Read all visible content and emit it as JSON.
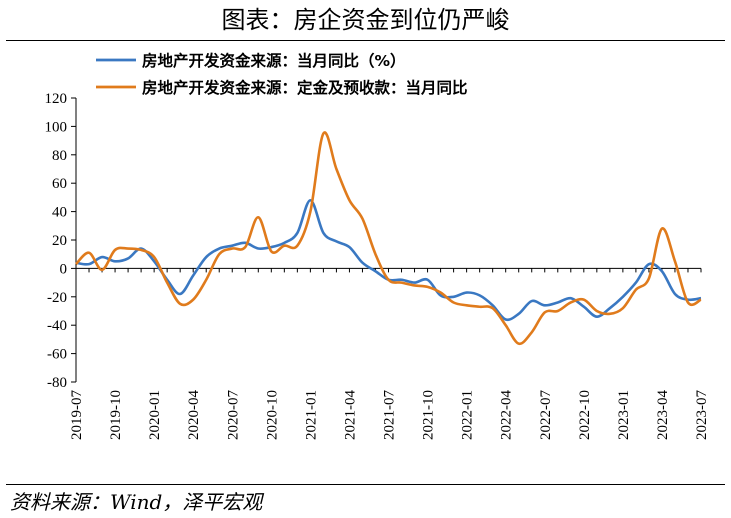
{
  "header": {
    "title": "图表：房企资金到位仍严峻"
  },
  "footer": {
    "source": "资料来源：Wind，泽平宏观"
  },
  "chart_data": {
    "type": "line",
    "title": "图表：房企资金到位仍严峻",
    "xlabel": "",
    "ylabel": "",
    "ylim": [
      -80,
      120
    ],
    "y_ticks": [
      120,
      100,
      80,
      60,
      40,
      20,
      0,
      -20,
      -40,
      -60,
      -80
    ],
    "legend_position": "top-left",
    "grid": false,
    "x": [
      "2019-07",
      "2019-08",
      "2019-09",
      "2019-10",
      "2019-11",
      "2019-12",
      "2020-01",
      "2020-02",
      "2020-03",
      "2020-04",
      "2020-05",
      "2020-06",
      "2020-07",
      "2020-08",
      "2020-09",
      "2020-10",
      "2020-11",
      "2020-12",
      "2021-01",
      "2021-02",
      "2021-03",
      "2021-04",
      "2021-05",
      "2021-06",
      "2021-07",
      "2021-08",
      "2021-09",
      "2021-10",
      "2021-11",
      "2021-12",
      "2022-01",
      "2022-02",
      "2022-03",
      "2022-04",
      "2022-05",
      "2022-06",
      "2022-07",
      "2022-08",
      "2022-09",
      "2022-10",
      "2022-11",
      "2022-12",
      "2023-01",
      "2023-02",
      "2023-03",
      "2023-04",
      "2023-05",
      "2023-06",
      "2023-07"
    ],
    "x_tick_labels": [
      "2019-07",
      "2019-10",
      "2020-01",
      "2020-04",
      "2020-07",
      "2020-10",
      "2021-01",
      "2021-04",
      "2021-07",
      "2021-10",
      "2022-01",
      "2022-04",
      "2022-07",
      "2022-10",
      "2023-01",
      "2023-04",
      "2023-07"
    ],
    "series": [
      {
        "name": "房地产开发资金来源：当月同比（%）",
        "color": "#3a78c2",
        "values": [
          4,
          3,
          8,
          5,
          7,
          14,
          5,
          -8,
          -18,
          -5,
          8,
          14,
          16,
          18,
          14,
          15,
          18,
          25,
          48,
          25,
          19,
          15,
          4,
          -2,
          -8,
          -8,
          -10,
          -8,
          -19,
          -20,
          -17,
          -19,
          -26,
          -36,
          -32,
          -23,
          -26,
          -24,
          -21,
          -27,
          -34,
          -28,
          -20,
          -10,
          3,
          -2,
          -18,
          -22,
          -21
        ]
      },
      {
        "name": "房地产开发资金来源：定金及预收款：当月同比",
        "color": "#e07b1c",
        "values": [
          3,
          11,
          -1,
          13,
          14,
          13,
          8,
          -10,
          -25,
          -22,
          -8,
          10,
          14,
          15,
          36,
          12,
          16,
          16,
          40,
          95,
          70,
          48,
          35,
          10,
          -8,
          -10,
          -12,
          -13,
          -17,
          -24,
          -26,
          -27,
          -28,
          -40,
          -53,
          -45,
          -31,
          -30,
          -24,
          -22,
          -30,
          -32,
          -28,
          -15,
          -7,
          28,
          5,
          -24,
          -22
        ]
      }
    ]
  }
}
